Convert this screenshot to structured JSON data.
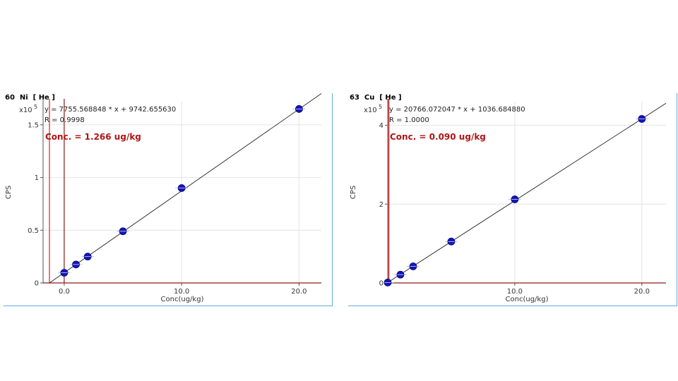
{
  "chart_data": [
    {
      "type": "scatter",
      "title": "60  Ni  [ He ]",
      "xlabel": "Conc(ug/kg)",
      "ylabel": "CPS",
      "scale_label": "x10",
      "scale_exp": "5",
      "equation": "y = 7755.568848 * x  + 9742.655630",
      "r_text": "R =  0.9998",
      "conc_text": "Conc. =  1.266 ug/kg",
      "xlim": [
        -1.8,
        21.9
      ],
      "ylim": [
        0,
        1.72
      ],
      "xticks": [
        0,
        10,
        20
      ],
      "xtick_labels": [
        "0.0",
        "10.0",
        "20.0"
      ],
      "yticks": [
        0,
        0.5,
        1,
        1.5
      ],
      "ytick_labels": [
        "0",
        "0.5",
        "1",
        "1.5"
      ],
      "grid": true,
      "fit": {
        "slope": 0.07755568848,
        "intercept": 0.0974265563
      },
      "intercept_line_x": -1.256,
      "sample_line_x": 0,
      "x": [
        0,
        1,
        2,
        5,
        10,
        20
      ],
      "y": [
        0.097,
        0.175,
        0.25,
        0.49,
        0.9,
        1.65
      ],
      "colors": {
        "point": "#1515b5",
        "fit": "#222222",
        "red": "#e05050",
        "dark_red": "#8b1a1a",
        "conc_text": "#b01515",
        "frame": "#66aadd"
      }
    },
    {
      "type": "scatter",
      "title": "63  Cu  [ He ]",
      "xlabel": "Conc(ug/kg)",
      "ylabel": "CPS",
      "scale_label": "x10",
      "scale_exp": "5",
      "equation": "y = 20766.072047 * x  + 1036.684880",
      "r_text": "R =  1.0000",
      "conc_text": "Conc. =  0.090 ug/kg",
      "xlim": [
        0,
        21.9
      ],
      "ylim": [
        0,
        4.6
      ],
      "xticks": [
        10,
        20
      ],
      "xtick_labels": [
        "10.0",
        "20.0"
      ],
      "yticks": [
        0,
        2,
        4
      ],
      "ytick_labels": [
        "0",
        "2",
        "4"
      ],
      "grid": true,
      "fit": {
        "slope": 0.20766072047,
        "intercept": 0.0103668488
      },
      "intercept_line_x": 0,
      "sample_line_x": 0.09,
      "x": [
        0,
        1,
        2,
        5,
        10,
        20
      ],
      "y": [
        0.01,
        0.21,
        0.42,
        1.05,
        2.12,
        4.16
      ],
      "colors": {
        "point": "#1515b5",
        "fit": "#222222",
        "red": "#e05050",
        "dark_red": "#8b1a1a",
        "conc_text": "#b01515",
        "frame": "#66aadd"
      }
    }
  ]
}
